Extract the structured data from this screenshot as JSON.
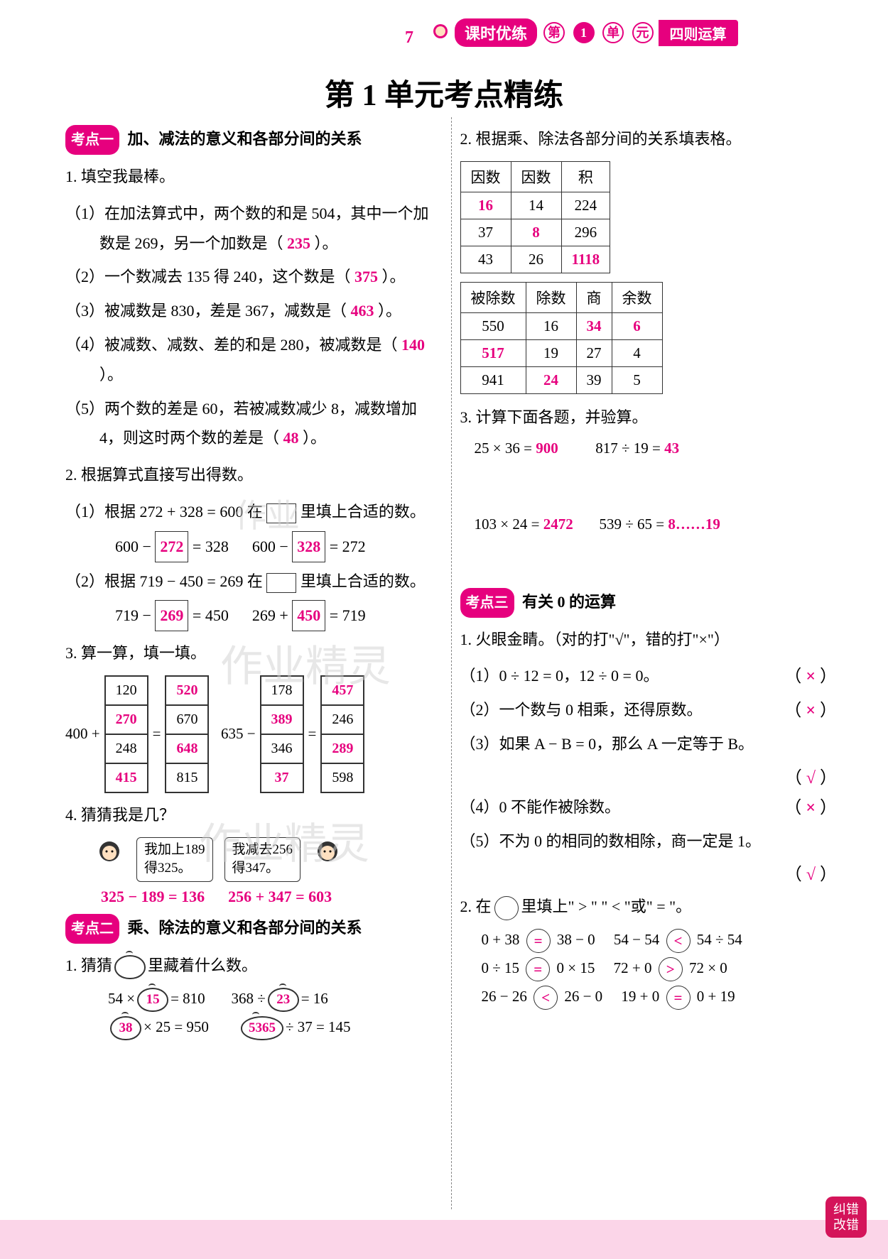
{
  "page_number": "7",
  "banner": {
    "lesson": "课时优练",
    "unit_prefix": "第",
    "unit_num": "1",
    "unit_char1": "单",
    "unit_char2": "元",
    "topic": "四则运算"
  },
  "main_title": "第 1 单元考点精练",
  "answer_color": "#e6007e",
  "kaodian1": {
    "tag": "考点一",
    "text": "加、减法的意义和各部分间的关系"
  },
  "kaodian2": {
    "tag": "考点二",
    "text": "乘、除法的意义和各部分间的关系"
  },
  "kaodian3": {
    "tag": "考点三",
    "text": "有关 0 的运算"
  },
  "l1": {
    "title": "1. 填空我最棒。",
    "i1": {
      "t": "（1）在加法算式中，两个数的和是 504，其中一个加数是 269，另一个加数是（",
      "a": "235",
      "e": "）。"
    },
    "i2": {
      "t": "（2）一个数减去 135 得 240，这个数是（",
      "a": "375",
      "e": "）。"
    },
    "i3": {
      "t": "（3）被减数是 830，差是 367，减数是（",
      "a": "463",
      "e": "）。"
    },
    "i4": {
      "t": "（4）被减数、减数、差的和是 280，被减数是（",
      "a": "140",
      "e": "）。"
    },
    "i5": {
      "t": "（5）两个数的差是 60，若被减数减少 8，减数增加 4，则这时两个数的差是（",
      "a": "48",
      "e": "）。"
    }
  },
  "l2": {
    "title": "2. 根据算式直接写出得数。",
    "i1t": "（1）根据 272 + 328 = 600 在",
    "i1e": "里填上合适的数。",
    "eq1a": "600 −",
    "eq1a_box": "272",
    "eq1a_r": "= 328",
    "eq1b": "600 −",
    "eq1b_box": "328",
    "eq1b_r": "= 272",
    "i2t": "（2）根据 719 − 450 = 269 在",
    "i2e": "里填上合适的数。",
    "eq2a": "719 −",
    "eq2a_box": "269",
    "eq2a_r": "= 450",
    "eq2b": "269 +",
    "eq2b_box": "450",
    "eq2b_r": "= 719"
  },
  "l3": {
    "title": "3. 算一算，填一填。",
    "lhs1": "400 +",
    "grid1_left": [
      "120",
      "270",
      "248",
      "415"
    ],
    "grid1_right": [
      "520",
      "670",
      "648",
      "815"
    ],
    "lhs2": "635 −",
    "grid2_left": [
      "178",
      "389",
      "346",
      "37"
    ],
    "grid2_right": [
      "457",
      "246",
      "289",
      "598"
    ],
    "answers1": [
      false,
      true,
      false,
      true
    ],
    "answers1b": [
      true,
      false,
      true,
      false
    ],
    "answers2": [
      false,
      true,
      false,
      true
    ],
    "answers2b": [
      true,
      false,
      true,
      false
    ]
  },
  "l4": {
    "title": "4. 猜猜我是几？",
    "speech1": "我加上189\n得325。",
    "speech2": "我减去256\n得347。",
    "sol1": "325 − 189 = 136",
    "sol2": "256 + 347 = 603"
  },
  "lk2_1": {
    "title": "1. 猜猜",
    "title2": "里藏着什么数。",
    "e1": "54 ×",
    "a1": "15",
    "e1r": "= 810",
    "e2": "368 ÷",
    "a2": "23",
    "e2r": "= 16",
    "e3": "",
    "a3": "38",
    "e3r": "× 25 = 950",
    "e4": "",
    "a4": "5365",
    "e4r": "÷ 37 = 145"
  },
  "r2": {
    "title": "2. 根据乘、除法各部分间的关系填表格。",
    "table1": {
      "headers": [
        "因数",
        "因数",
        "积"
      ],
      "rows": [
        [
          {
            "v": "16",
            "a": true
          },
          {
            "v": "14",
            "a": false
          },
          {
            "v": "224",
            "a": false
          }
        ],
        [
          {
            "v": "37",
            "a": false
          },
          {
            "v": "8",
            "a": true
          },
          {
            "v": "296",
            "a": false
          }
        ],
        [
          {
            "v": "43",
            "a": false
          },
          {
            "v": "26",
            "a": false
          },
          {
            "v": "1118",
            "a": true
          }
        ]
      ]
    },
    "table2": {
      "headers": [
        "被除数",
        "除数",
        "商",
        "余数"
      ],
      "rows": [
        [
          {
            "v": "550",
            "a": false
          },
          {
            "v": "16",
            "a": false
          },
          {
            "v": "34",
            "a": true
          },
          {
            "v": "6",
            "a": true
          }
        ],
        [
          {
            "v": "517",
            "a": true
          },
          {
            "v": "19",
            "a": false
          },
          {
            "v": "27",
            "a": false
          },
          {
            "v": "4",
            "a": false
          }
        ],
        [
          {
            "v": "941",
            "a": false
          },
          {
            "v": "24",
            "a": true
          },
          {
            "v": "39",
            "a": false
          },
          {
            "v": "5",
            "a": false
          }
        ]
      ]
    }
  },
  "r3": {
    "title": "3. 计算下面各题，并验算。",
    "e1": "25 × 36 =",
    "a1": "900",
    "e2": "817 ÷ 19 =",
    "a2": "43",
    "e3": "103 × 24 =",
    "a3": "2472",
    "e4": "539 ÷ 65 =",
    "a4": "8……19"
  },
  "rk3_1": {
    "title": "1. 火眼金睛。（对的打\"√\"，错的打\"×\"）",
    "i1": "（1）0 ÷ 12 = 0，12 ÷ 0 = 0。",
    "a1": "×",
    "i2": "（2）一个数与 0 相乘，还得原数。",
    "a2": "×",
    "i3": "（3）如果 A − B = 0，那么 A 一定等于 B。",
    "a3": "√",
    "i4": "（4）0 不能作被除数。",
    "a4": "×",
    "i5": "（5）不为 0 的相同的数相除，商一定是 1。",
    "a5": "√"
  },
  "rk3_2": {
    "title": "2. 在",
    "title2": "里填上\" > \" \" < \"或\" = \"。",
    "rows": [
      {
        "l": "0 + 38",
        "op": "=",
        "r": "38 − 0",
        "l2": "54 − 54",
        "op2": "<",
        "r2": "54 ÷ 54"
      },
      {
        "l": "0 ÷ 15",
        "op": "=",
        "r": "0 × 15",
        "l2": "72 + 0",
        "op2": ">",
        "r2": "72 × 0"
      },
      {
        "l": "26 − 26",
        "op": "<",
        "r": "26 − 0",
        "l2": "19 + 0",
        "op2": "=",
        "r2": "0 + 19"
      }
    ]
  },
  "stamp": "纠错\n改错"
}
